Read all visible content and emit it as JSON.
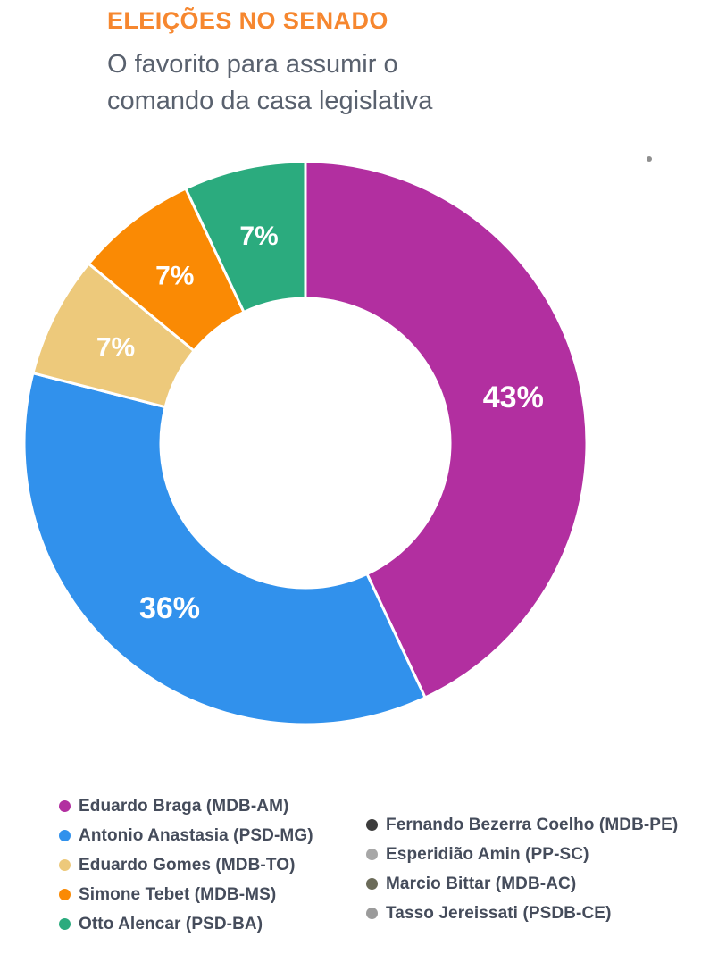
{
  "header": {
    "title": "ELEIÇÕES NO SENADO",
    "subtitle_lines": [
      "O favorito para assumir o",
      "comando da casa legislativa"
    ]
  },
  "colors": {
    "title_accent": "#F6872F",
    "subtitle_text": "#59616E",
    "legend_text": "#454C5B",
    "slice_separator": "#FFFFFF",
    "decorative_dot": "#8F8F8F"
  },
  "chart_data": {
    "type": "pie",
    "donut": true,
    "title": "ELEIÇÕES NO SENADO",
    "subtitle": "O favorito para assumir o comando da casa legislativa",
    "direction": "clockwise",
    "start_angle_deg": 0,
    "label_format": "{value}%",
    "legend_position": "bottom",
    "categories": [
      "Eduardo Braga (MDB-AM)",
      "Antonio Anastasia (PSD-MG)",
      "Eduardo Gomes (MDB-TO)",
      "Simone Tebet (MDB-MS)",
      "Otto Alencar (PSD-BA)"
    ],
    "values": [
      43,
      36,
      7,
      7,
      7
    ],
    "slices": [
      {
        "label": "Eduardo Braga (MDB-AM)",
        "value": 43,
        "color": "#B22FA0"
      },
      {
        "label": "Antonio Anastasia (PSD-MG)",
        "value": 36,
        "color": "#3191EC"
      },
      {
        "label": "Eduardo Gomes (MDB-TO)",
        "value": 7,
        "color": "#EDC97B"
      },
      {
        "label": "Simone Tebet (MDB-MS)",
        "value": 7,
        "color": "#FA8A04"
      },
      {
        "label": "Otto Alencar (PSD-BA)",
        "value": 7,
        "color": "#2BAB7E"
      }
    ]
  },
  "legend": {
    "left": [
      {
        "label": "Eduardo Braga (MDB-AM)",
        "color": "#B22FA0"
      },
      {
        "label": "Antonio Anastasia (PSD-MG)",
        "color": "#3191EC"
      },
      {
        "label": "Eduardo Gomes (MDB-TO)",
        "color": "#EDC97B"
      },
      {
        "label": "Simone Tebet (MDB-MS)",
        "color": "#FA8A04"
      },
      {
        "label": "Otto Alencar (PSD-BA)",
        "color": "#2BAB7E"
      }
    ],
    "right": [
      {
        "label": "Fernando Bezerra Coelho (MDB-PE)",
        "color": "#3D3D3D"
      },
      {
        "label": "Esperidião Amin (PP-SC)",
        "color": "#A7A7A7"
      },
      {
        "label": "Marcio Bittar (MDB-AC)",
        "color": "#6B6B59"
      },
      {
        "label": "Tasso Jereissati (PSDB-CE)",
        "color": "#9B9B9B"
      }
    ]
  }
}
